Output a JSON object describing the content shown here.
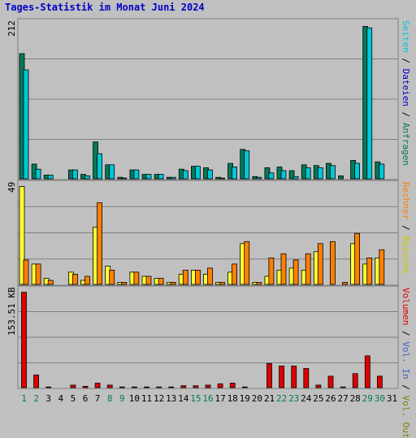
{
  "title": "Tages-Statistik im Monat Juni 2024",
  "colors": {
    "background": "#c0c0c0",
    "border": "#808080",
    "anfragen": "#007a5a",
    "dateien": "#0000c8",
    "seiten": "#00c8d8",
    "besuche": "#ffff33",
    "rechner": "#ff8000",
    "vol_out": "#808000",
    "vol_in": "#4060c0",
    "volumen": "#e00000",
    "weekend_day": "#007a5a",
    "weekday": "#000000"
  },
  "right_labels": {
    "panel1": [
      {
        "text": "Anfragen",
        "color": "#007a5a"
      },
      {
        "text": "Dateien",
        "color": "#0000c8"
      },
      {
        "text": "Seiten",
        "color": "#00c8d8"
      }
    ],
    "panel2": [
      {
        "text": "Besuche",
        "color": "#c8c800"
      },
      {
        "text": "Rechner",
        "color": "#ff8000"
      }
    ],
    "panel3": [
      {
        "text": "Vol. Out",
        "color": "#808000"
      },
      {
        "text": "Vol. In",
        "color": "#4060c0"
      },
      {
        "text": "Volumen",
        "color": "#e00000"
      }
    ]
  },
  "chart_data": [
    {
      "type": "bar",
      "panel": "requests",
      "ymax_label": "212",
      "ylim": [
        0,
        212
      ],
      "categories": [
        "1",
        "2",
        "3",
        "4",
        "5",
        "6",
        "7",
        "8",
        "9",
        "10",
        "11",
        "12",
        "13",
        "14",
        "15",
        "16",
        "17",
        "18",
        "19",
        "20",
        "21",
        "22",
        "23",
        "24",
        "25",
        "26",
        "27",
        "28",
        "29",
        "30",
        "31"
      ],
      "series": [
        {
          "name": "Anfragen",
          "values": [
            170,
            20,
            5,
            0,
            12,
            6,
            50,
            19,
            2,
            12,
            6,
            6,
            2,
            13,
            17,
            15,
            2,
            21,
            40,
            3,
            15,
            16,
            11,
            19,
            18,
            21,
            4,
            25,
            207,
            23,
            0
          ]
        },
        {
          "name": "Dateien",
          "values": [
            148,
            13,
            5,
            0,
            12,
            4,
            34,
            19,
            1,
            12,
            6,
            6,
            2,
            11,
            17,
            12,
            1,
            16,
            38,
            2,
            8,
            11,
            3,
            15,
            15,
            18,
            0,
            21,
            205,
            20,
            0
          ]
        }
      ]
    },
    {
      "type": "bar",
      "panel": "visits",
      "ymax_label": "49",
      "ylim": [
        0,
        49
      ],
      "categories": [
        "1",
        "2",
        "3",
        "4",
        "5",
        "6",
        "7",
        "8",
        "9",
        "10",
        "11",
        "12",
        "13",
        "14",
        "15",
        "16",
        "17",
        "18",
        "19",
        "20",
        "21",
        "22",
        "23",
        "24",
        "25",
        "26",
        "27",
        "28",
        "29",
        "30",
        "31"
      ],
      "series": [
        {
          "name": "Besuche",
          "values": [
            48,
            10,
            3,
            0,
            6,
            2,
            28,
            9,
            1,
            6,
            4,
            3,
            1,
            5,
            7,
            5,
            1,
            6,
            20,
            1,
            4,
            7,
            8,
            7,
            16,
            0,
            0,
            20,
            10,
            13,
            0
          ]
        },
        {
          "name": "Rechner",
          "values": [
            12,
            10,
            2,
            0,
            5,
            4,
            40,
            7,
            1,
            6,
            4,
            3,
            1,
            7,
            7,
            8,
            1,
            10,
            21,
            1,
            13,
            15,
            12,
            15,
            20,
            21,
            1,
            25,
            13,
            17,
            0
          ]
        }
      ]
    },
    {
      "type": "bar",
      "panel": "volume",
      "ymax_label": "153.51 KB",
      "unit": "KB",
      "ylim": [
        0,
        153.51
      ],
      "categories": [
        "1",
        "2",
        "3",
        "4",
        "5",
        "6",
        "7",
        "8",
        "9",
        "10",
        "11",
        "12",
        "13",
        "14",
        "15",
        "16",
        "17",
        "18",
        "19",
        "20",
        "21",
        "22",
        "23",
        "24",
        "25",
        "26",
        "27",
        "28",
        "29",
        "30",
        "31"
      ],
      "series": [
        {
          "name": "Volumen",
          "values": [
            150,
            20,
            1,
            0,
            4,
            2,
            7,
            4,
            1,
            1,
            1,
            1,
            1,
            3,
            3,
            4,
            6,
            7,
            1,
            0,
            38,
            34,
            34,
            30,
            4,
            18,
            1,
            22,
            50,
            18,
            0
          ]
        }
      ]
    }
  ],
  "x_axis": {
    "labels": [
      "1",
      "2",
      "3",
      "4",
      "5",
      "6",
      "7",
      "8",
      "9",
      "10",
      "11",
      "12",
      "13",
      "14",
      "15",
      "16",
      "17",
      "18",
      "19",
      "20",
      "21",
      "22",
      "23",
      "24",
      "25",
      "26",
      "27",
      "28",
      "29",
      "30",
      "31"
    ],
    "weekend": [
      1,
      2,
      8,
      9,
      15,
      16,
      22,
      23,
      29,
      30
    ]
  }
}
